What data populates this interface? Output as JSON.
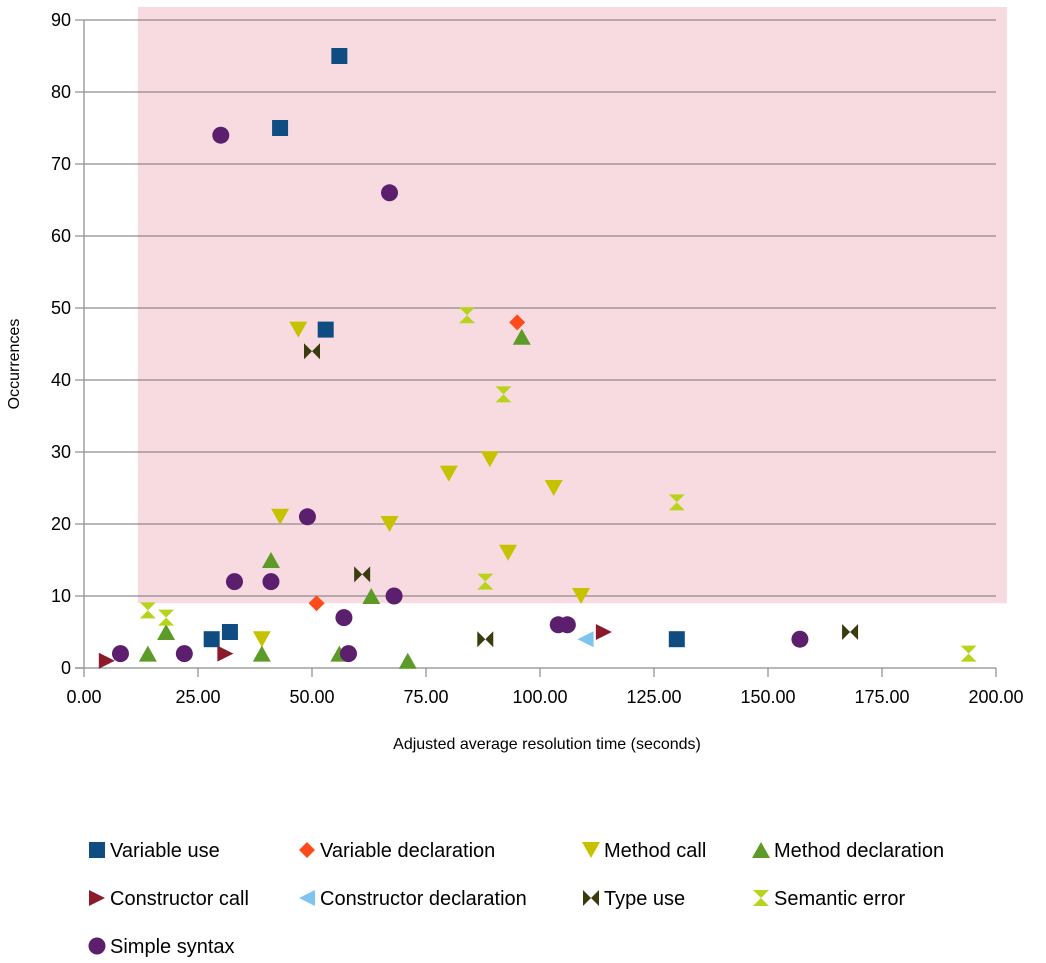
{
  "chart_data": {
    "type": "scatter",
    "title": "",
    "xlabel": "Adjusted average resolution time (seconds)",
    "ylabel": "Occurrences",
    "xlim": [
      0,
      200
    ],
    "ylim": [
      0,
      90
    ],
    "x_ticks": [
      "0.00",
      "25.00",
      "50.00",
      "75.00",
      "100.00",
      "125.00",
      "150.00",
      "175.00",
      "200.00"
    ],
    "y_ticks": [
      "0",
      "10",
      "20",
      "30",
      "40",
      "50",
      "60",
      "70",
      "80",
      "90"
    ],
    "grid": "horizontal",
    "legend_position": "bottom",
    "highlight_region": {
      "x": [
        11.8,
        200
      ],
      "y": [
        9,
        90
      ],
      "color": "#f8dbe0"
    },
    "series": [
      {
        "name": "Variable use",
        "marker": "square",
        "color": "#0f4c81",
        "points": [
          [
            56,
            85
          ],
          [
            43,
            75
          ],
          [
            53,
            47
          ],
          [
            28,
            4
          ],
          [
            32,
            5
          ],
          [
            130,
            4
          ]
        ]
      },
      {
        "name": "Variable declaration",
        "marker": "diamond",
        "color": "#ff4a1c",
        "points": [
          [
            95,
            48
          ],
          [
            51,
            9
          ]
        ]
      },
      {
        "name": "Method call",
        "marker": "triangle-down",
        "color": "#c6c200",
        "points": [
          [
            47,
            47
          ],
          [
            43,
            21
          ],
          [
            80,
            27
          ],
          [
            89,
            29
          ],
          [
            103,
            25
          ],
          [
            67,
            20
          ],
          [
            93,
            16
          ],
          [
            109,
            10
          ],
          [
            39,
            4
          ]
        ]
      },
      {
        "name": "Method declaration",
        "marker": "triangle-up",
        "color": "#5c9b27",
        "points": [
          [
            96,
            46
          ],
          [
            41,
            15
          ],
          [
            63,
            10
          ],
          [
            18,
            5
          ],
          [
            14,
            2
          ],
          [
            39,
            2
          ],
          [
            56,
            2
          ],
          [
            71,
            1
          ]
        ]
      },
      {
        "name": "Constructor call",
        "marker": "triangle-right",
        "color": "#8b1a2b",
        "points": [
          [
            5,
            1
          ],
          [
            31,
            2
          ],
          [
            114,
            5
          ]
        ]
      },
      {
        "name": "Constructor declaration",
        "marker": "triangle-left",
        "color": "#7fc4ef",
        "points": [
          [
            110,
            4
          ]
        ]
      },
      {
        "name": "Type use",
        "marker": "bowtie",
        "color": "#3b3b10",
        "points": [
          [
            50,
            44
          ],
          [
            61,
            13
          ],
          [
            88,
            4
          ],
          [
            168,
            5
          ]
        ]
      },
      {
        "name": "Semantic error",
        "marker": "hourglass",
        "color": "#b8d31b",
        "points": [
          [
            84,
            49
          ],
          [
            92,
            38
          ],
          [
            130,
            23
          ],
          [
            88,
            12
          ],
          [
            14,
            8
          ],
          [
            18,
            7
          ],
          [
            194,
            2
          ]
        ]
      },
      {
        "name": "Simple syntax",
        "marker": "circle",
        "color": "#5b1f6e",
        "points": [
          [
            30,
            74
          ],
          [
            67,
            66
          ],
          [
            49,
            21
          ],
          [
            33,
            12
          ],
          [
            41,
            12
          ],
          [
            68,
            10
          ],
          [
            57,
            7
          ],
          [
            104,
            6
          ],
          [
            106,
            6
          ],
          [
            8,
            2
          ],
          [
            22,
            2
          ],
          [
            58,
            2
          ],
          [
            157,
            4
          ]
        ]
      }
    ]
  }
}
